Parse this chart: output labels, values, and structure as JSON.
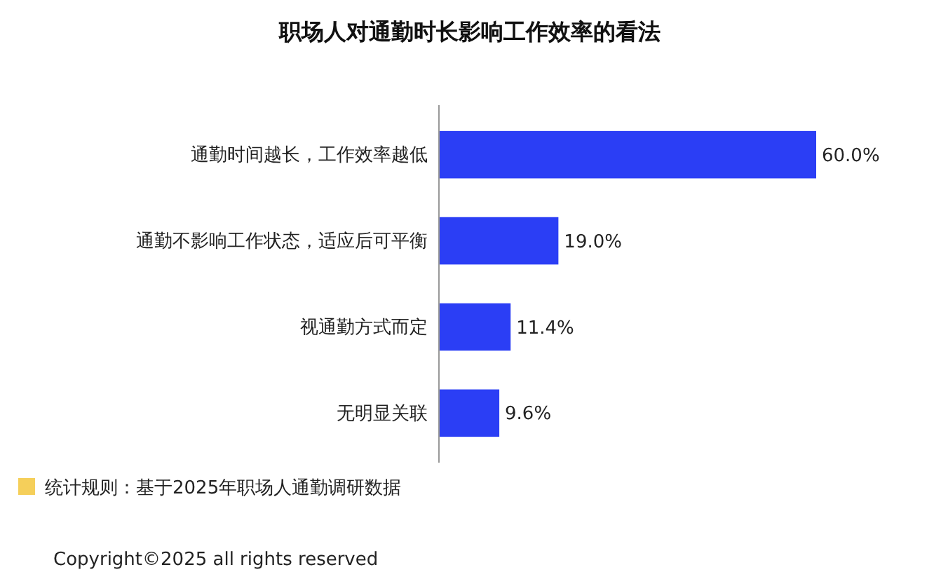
{
  "chart_data": {
    "type": "bar",
    "orientation": "horizontal",
    "title": "职场人对通勤时长影响工作效率的看法",
    "categories": [
      "通勤时间越长，工作效率越低",
      "通勤不影响工作状态，适应后可平衡",
      "视通勤方式而定",
      "无明显关联"
    ],
    "values": [
      60.0,
      19.0,
      11.4,
      9.6
    ],
    "color": "#2b3ef5",
    "value_labels": [
      "60.0%",
      "19.0%",
      "11.4%",
      "9.6%"
    ],
    "annotations": [
      "统计规则：基于2025年职场人通勤调研数据",
      "Copyright©2025 all rights reserved"
    ]
  }
}
